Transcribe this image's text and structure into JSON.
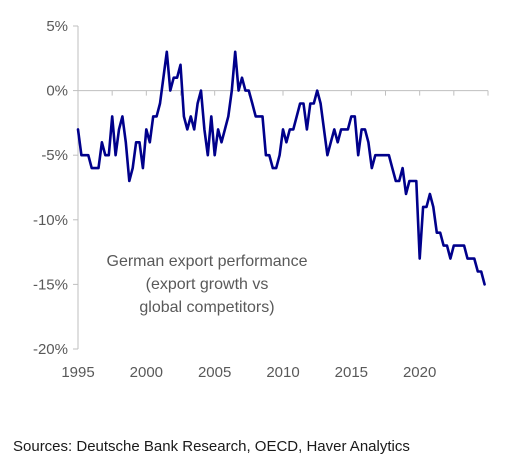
{
  "chart_data": {
    "type": "line",
    "title": "",
    "xlabel": "",
    "ylabel": "",
    "xlim": [
      1995,
      2025
    ],
    "ylim": [
      -20,
      5
    ],
    "y_ticks": [
      5,
      0,
      -5,
      -10,
      -15,
      -20
    ],
    "y_tick_labels": [
      "5%",
      "0%",
      "-5%",
      "-10%",
      "-15%",
      "-20%"
    ],
    "x_ticks": [
      1995,
      2000,
      2005,
      2010,
      2015,
      2020
    ],
    "x_tick_labels": [
      "1995",
      "2000",
      "2005",
      "2010",
      "2015",
      "2020"
    ],
    "grid": false,
    "annotation": [
      "German export performance",
      "(export growth vs",
      "global competitors)"
    ],
    "series": [
      {
        "color": "#00008B",
        "x": [
          1995.0,
          1995.25,
          1995.5,
          1995.75,
          1996.0,
          1996.25,
          1996.5,
          1996.75,
          1997.0,
          1997.25,
          1997.5,
          1997.75,
          1998.0,
          1998.25,
          1998.5,
          1998.75,
          1999.0,
          1999.25,
          1999.5,
          1999.75,
          2000.0,
          2000.25,
          2000.5,
          2000.75,
          2001.0,
          2001.25,
          2001.5,
          2001.75,
          2002.0,
          2002.25,
          2002.5,
          2002.75,
          2003.0,
          2003.25,
          2003.5,
          2003.75,
          2004.0,
          2004.25,
          2004.5,
          2004.75,
          2005.0,
          2005.25,
          2005.5,
          2005.75,
          2006.0,
          2006.25,
          2006.5,
          2006.75,
          2007.0,
          2007.25,
          2007.5,
          2007.75,
          2008.0,
          2008.25,
          2008.5,
          2008.75,
          2009.0,
          2009.25,
          2009.5,
          2009.75,
          2010.0,
          2010.25,
          2010.5,
          2010.75,
          2011.0,
          2011.25,
          2011.5,
          2011.75,
          2012.0,
          2012.25,
          2012.5,
          2012.75,
          2013.0,
          2013.25,
          2013.5,
          2013.75,
          2014.0,
          2014.25,
          2014.5,
          2014.75,
          2015.0,
          2015.25,
          2015.5,
          2015.75,
          2016.0,
          2016.25,
          2016.5,
          2016.75,
          2017.0,
          2017.25,
          2017.5,
          2017.75,
          2018.0,
          2018.25,
          2018.5,
          2018.75,
          2019.0,
          2019.25,
          2019.5,
          2019.75,
          2020.0,
          2020.25,
          2020.5,
          2020.75,
          2021.0,
          2021.25,
          2021.5,
          2021.75,
          2022.0,
          2022.25,
          2022.5,
          2022.75,
          2023.0,
          2023.25,
          2023.5,
          2023.75,
          2024.0,
          2024.25,
          2024.5,
          2024.75
        ],
        "values": [
          -3,
          -5,
          -5,
          -5,
          -6,
          -6,
          -6,
          -4,
          -5,
          -5,
          -2,
          -5,
          -3,
          -2,
          -4,
          -7,
          -6,
          -4,
          -4,
          -6,
          -3,
          -4,
          -2,
          -2,
          -1,
          1,
          3,
          0,
          1,
          1,
          2,
          -2,
          -3,
          -2,
          -3,
          -1,
          0,
          -3,
          -5,
          -2,
          -5,
          -3,
          -4,
          -3,
          -2,
          0,
          3,
          0,
          1,
          0,
          0,
          -1,
          -2,
          -2,
          -2,
          -5,
          -5,
          -6,
          -6,
          -5,
          -3,
          -4,
          -3,
          -3,
          -2,
          -1,
          -1,
          -3,
          -1,
          -1,
          0,
          -1,
          -3,
          -5,
          -4,
          -3,
          -4,
          -3,
          -3,
          -3,
          -2,
          -2,
          -5,
          -3,
          -3,
          -4,
          -6,
          -5,
          -5,
          -5,
          -5,
          -5,
          -6,
          -7,
          -7,
          -6,
          -8,
          -7,
          -7,
          -7,
          -13,
          -9,
          -9,
          -8,
          -9,
          -11,
          -11,
          -12,
          -12,
          -13,
          -12,
          -12,
          -12,
          -12,
          -13,
          -13,
          -13,
          -14,
          -14,
          -15
        ]
      }
    ]
  },
  "source": "Sources: Deutsche Bank Research, OECD, Haver Analytics"
}
